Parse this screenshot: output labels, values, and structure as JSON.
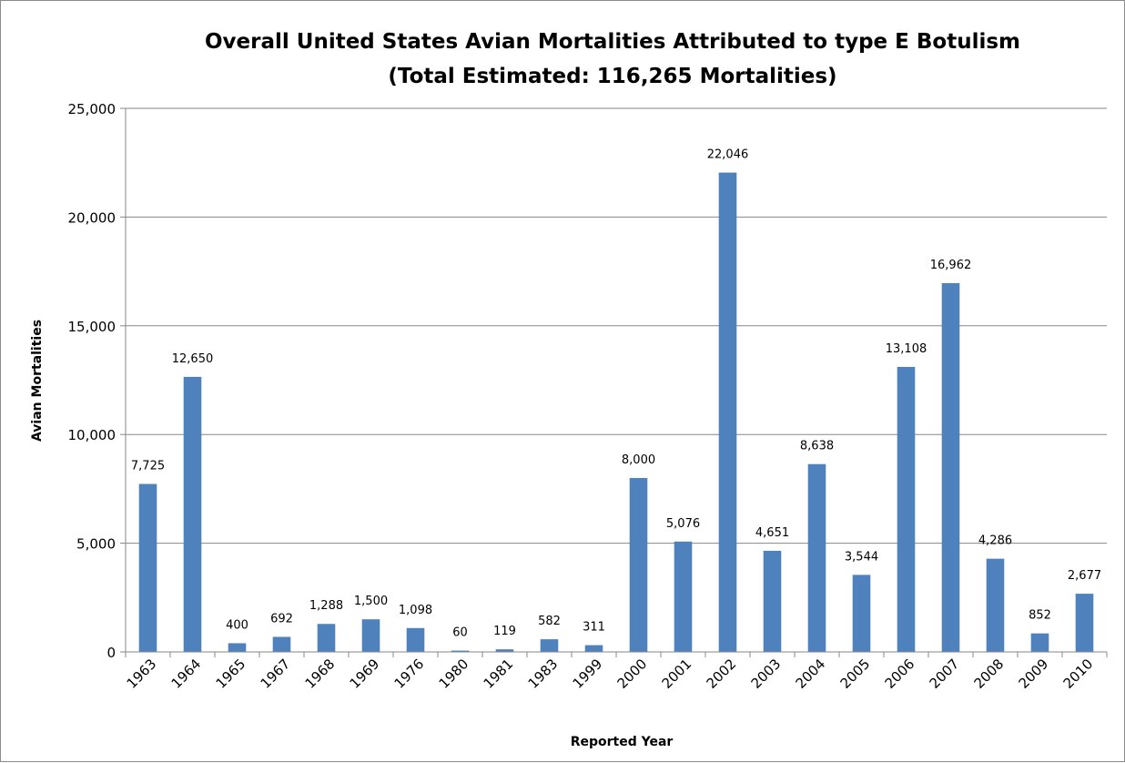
{
  "chart_data": {
    "type": "bar",
    "title": "Overall United States Avian Mortalities Attributed to type E Botulism",
    "subtitle": "(Total Estimated: 116,265 Mortalities)",
    "xlabel": "Reported Year",
    "ylabel": "Avian Mortalities",
    "ylim": [
      0,
      25000
    ],
    "yticks": [
      0,
      5000,
      10000,
      15000,
      20000,
      25000
    ],
    "ytick_labels": [
      "0",
      "5,000",
      "10,000",
      "15,000",
      "20,000",
      "25,000"
    ],
    "grid": true,
    "legend": "none",
    "bar_color": "#4f81bd",
    "categories": [
      "1963",
      "1964",
      "1965",
      "1967",
      "1968",
      "1969",
      "1976",
      "1980",
      "1981",
      "1983",
      "1999",
      "2000",
      "2001",
      "2002",
      "2003",
      "2004",
      "2005",
      "2006",
      "2007",
      "2008",
      "2009",
      "2010"
    ],
    "values": [
      7725,
      12650,
      400,
      692,
      1288,
      1500,
      1098,
      60,
      119,
      582,
      311,
      8000,
      5076,
      22046,
      4651,
      8638,
      3544,
      13108,
      16962,
      4286,
      852,
      2677
    ],
    "data_labels": [
      "7,725",
      "12,650",
      "400",
      "692",
      "1,288",
      "1,500",
      "1,098",
      "60",
      "119",
      "582",
      "311",
      "8,000",
      "5,076",
      "22,046",
      "4,651",
      "8,638",
      "3,544",
      "13,108",
      "16,962",
      "4,286",
      "852",
      "2,677"
    ]
  }
}
